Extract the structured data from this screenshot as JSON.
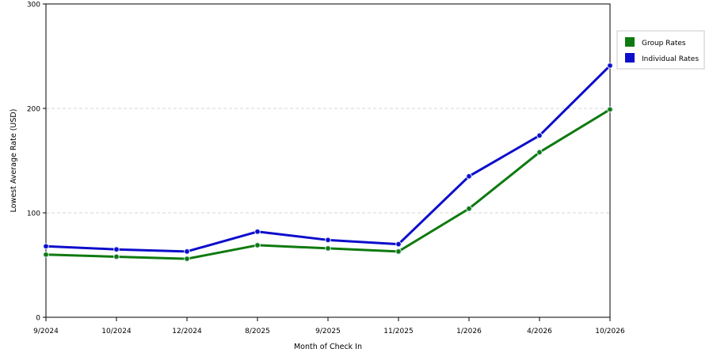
{
  "chart_data": {
    "type": "line",
    "categories": [
      "9/2024",
      "10/2024",
      "12/2024",
      "8/2025",
      "9/2025",
      "11/2025",
      "1/2026",
      "4/2026",
      "10/2026"
    ],
    "series": [
      {
        "name": "Group Rates",
        "color": "#0f7a0f",
        "values": [
          60,
          58,
          56,
          69,
          66,
          63,
          104,
          158,
          199
        ]
      },
      {
        "name": "Individual Rates",
        "color": "#0d0dcc",
        "values": [
          68,
          65,
          63,
          82,
          74,
          70,
          135,
          174,
          241
        ]
      }
    ],
    "xlabel": "Month of Check In",
    "ylabel": "Lowest Average Rate (USD)",
    "ylim": [
      0,
      300
    ],
    "yticks": [
      0,
      100,
      200,
      300
    ],
    "grid": "horizontal dashed",
    "legend_position": "right"
  }
}
